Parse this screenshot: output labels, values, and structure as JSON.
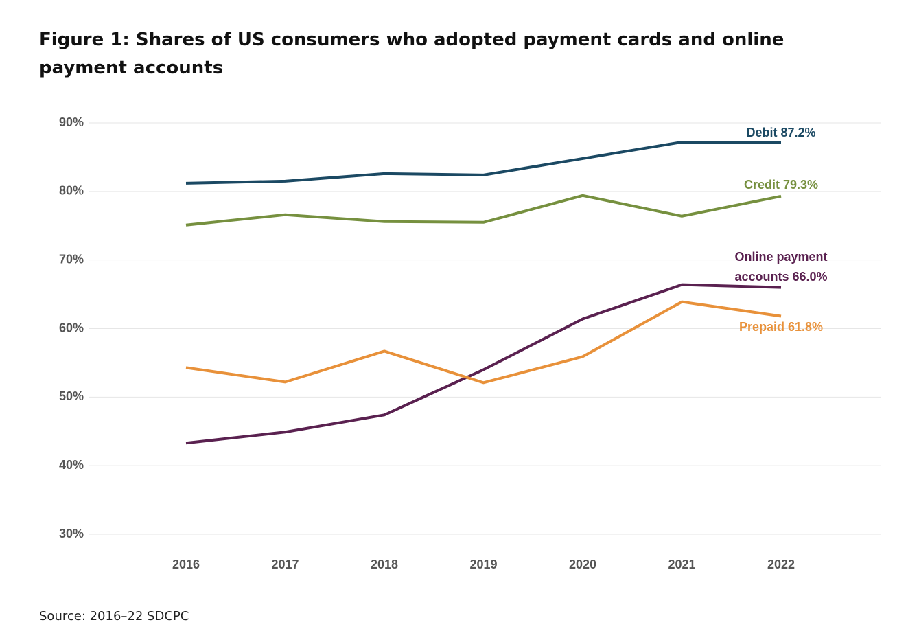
{
  "chart_data": {
    "type": "line",
    "title": "Figure 1: Shares of US consumers who adopted payment cards and online payment accounts",
    "source": "Source: 2016–22 SDCPC",
    "categories": [
      "2016",
      "2017",
      "2018",
      "2019",
      "2020",
      "2021",
      "2022"
    ],
    "series": [
      {
        "name": "Debit",
        "color": "#1b4963",
        "values": [
          81.2,
          81.5,
          82.6,
          82.4,
          84.8,
          87.2,
          87.2
        ]
      },
      {
        "name": "Credit",
        "color": "#76903f",
        "values": [
          75.1,
          76.6,
          75.6,
          75.5,
          79.4,
          76.4,
          79.3
        ]
      },
      {
        "name": "Online payment accounts",
        "color": "#5a2150",
        "values": [
          43.3,
          44.9,
          47.4,
          54.0,
          61.4,
          66.4,
          66.0
        ]
      },
      {
        "name": "Prepaid",
        "color": "#e8913a",
        "values": [
          54.3,
          52.2,
          56.7,
          52.1,
          55.9,
          63.9,
          61.8
        ]
      }
    ],
    "annotations": [
      {
        "series": 0,
        "lines": [
          "Debit 87.2%"
        ]
      },
      {
        "series": 1,
        "lines": [
          "Credit 79.3%"
        ]
      },
      {
        "series": 2,
        "lines": [
          "Online payment",
          "accounts 66.0%"
        ]
      },
      {
        "series": 3,
        "lines": [
          "Prepaid 61.8%"
        ]
      }
    ],
    "ylim": [
      30,
      90
    ],
    "yticks": [
      {
        "value": 30,
        "label": "30%"
      },
      {
        "value": 40,
        "label": "40%"
      },
      {
        "value": 50,
        "label": "50%"
      },
      {
        "value": 60,
        "label": "60%"
      },
      {
        "value": 70,
        "label": "70%"
      },
      {
        "value": 80,
        "label": "80%"
      },
      {
        "value": 90,
        "label": "90%"
      }
    ],
    "grid": true
  }
}
